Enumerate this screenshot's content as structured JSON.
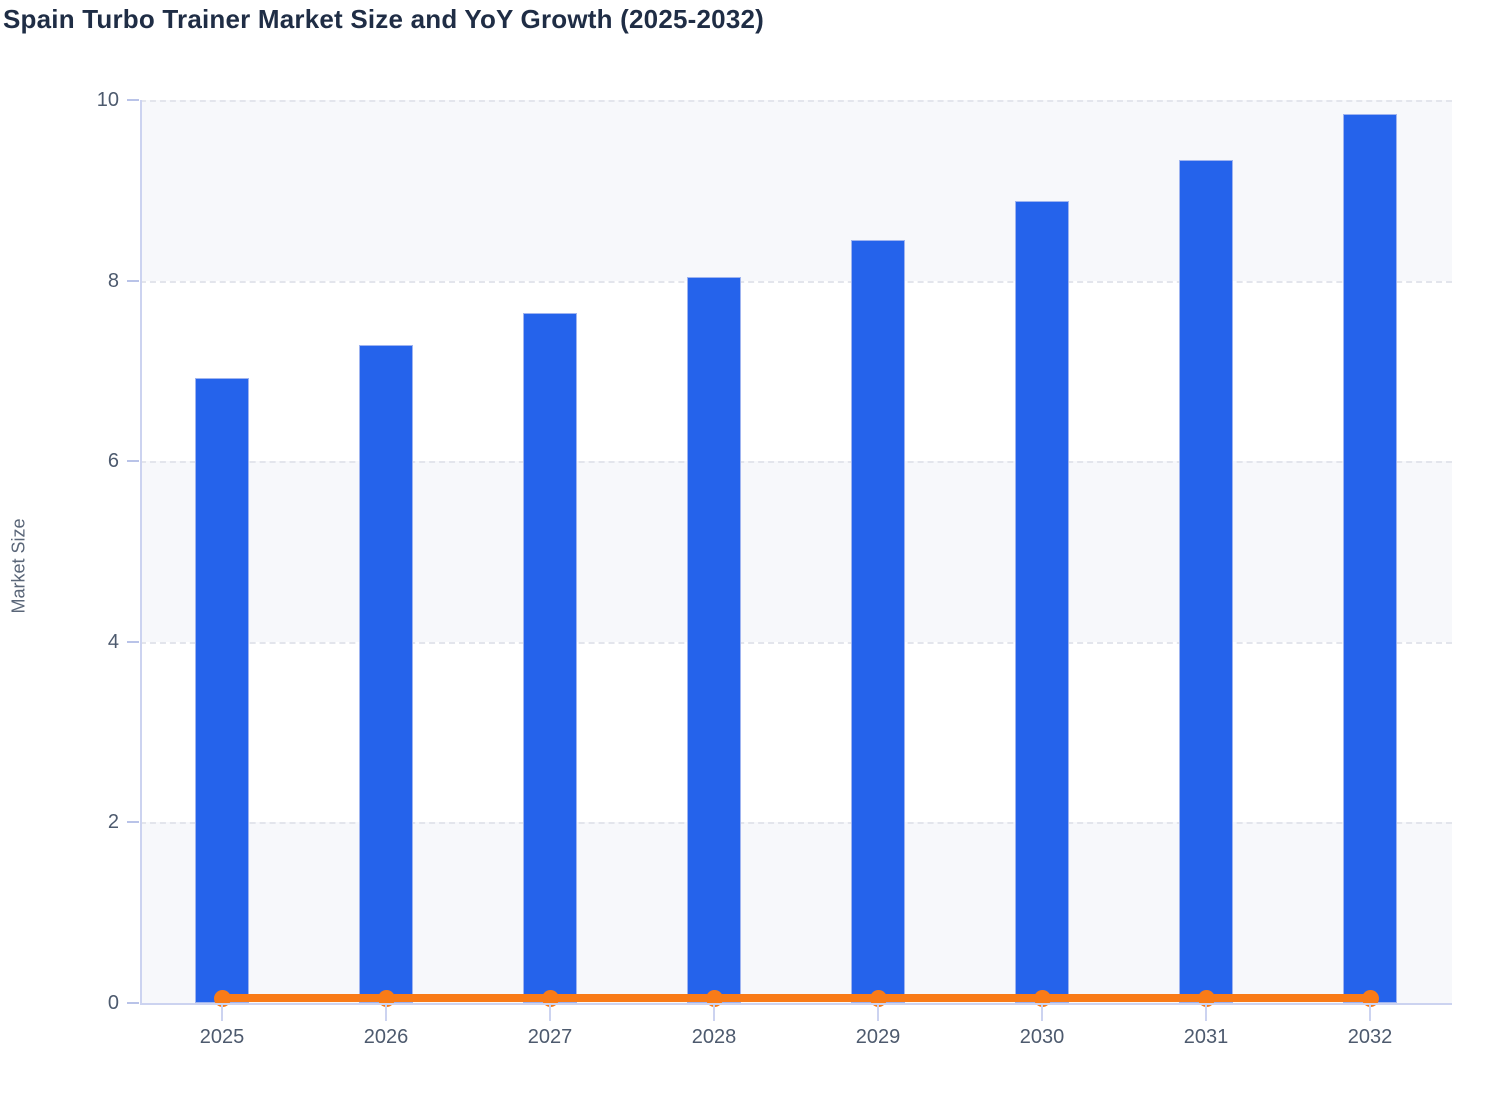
{
  "page": {
    "title": "Spain Turbo Trainer Market Size and YoY Growth (2025-2032)"
  },
  "chart_data": {
    "type": "bar",
    "title": "Spain Turbo Trainer Market Size and YoY Growth (2025-2032)",
    "xlabel": "",
    "ylabel": "Market Size",
    "categories": [
      "2025",
      "2026",
      "2027",
      "2028",
      "2029",
      "2030",
      "2031",
      "2032"
    ],
    "series": [
      {
        "name": "Market Size",
        "type": "bar",
        "color": "#2563eb",
        "values": [
          6.92,
          7.29,
          7.64,
          8.04,
          8.45,
          8.88,
          9.34,
          9.85
        ]
      },
      {
        "name": "YoY Growth",
        "type": "line",
        "color": "#f97b17",
        "values": [
          0.05,
          0.05,
          0.05,
          0.05,
          0.05,
          0.05,
          0.05,
          0.05
        ]
      }
    ],
    "ylim": [
      0,
      10
    ],
    "y_ticks": [
      0,
      2,
      4,
      6,
      8,
      10
    ],
    "grid": "horizontal dashed gridlines at each y tick",
    "legend_position": "none",
    "plot_band_colors_alternating_from_bottom": [
      "#f7f8fb",
      "#ffffff"
    ]
  },
  "style": {
    "bar_color": "#2563eb",
    "line_color": "#f97b17",
    "band_gray": "#f7f8fb",
    "band_white": "#ffffff",
    "grid_dash_color": "#e3e5ec",
    "axis_line_color": "#ccd3f0",
    "tick_label_color": "#4d5a6e",
    "axis_name_color": "#5a6678",
    "title_color": "#1f2d45"
  }
}
